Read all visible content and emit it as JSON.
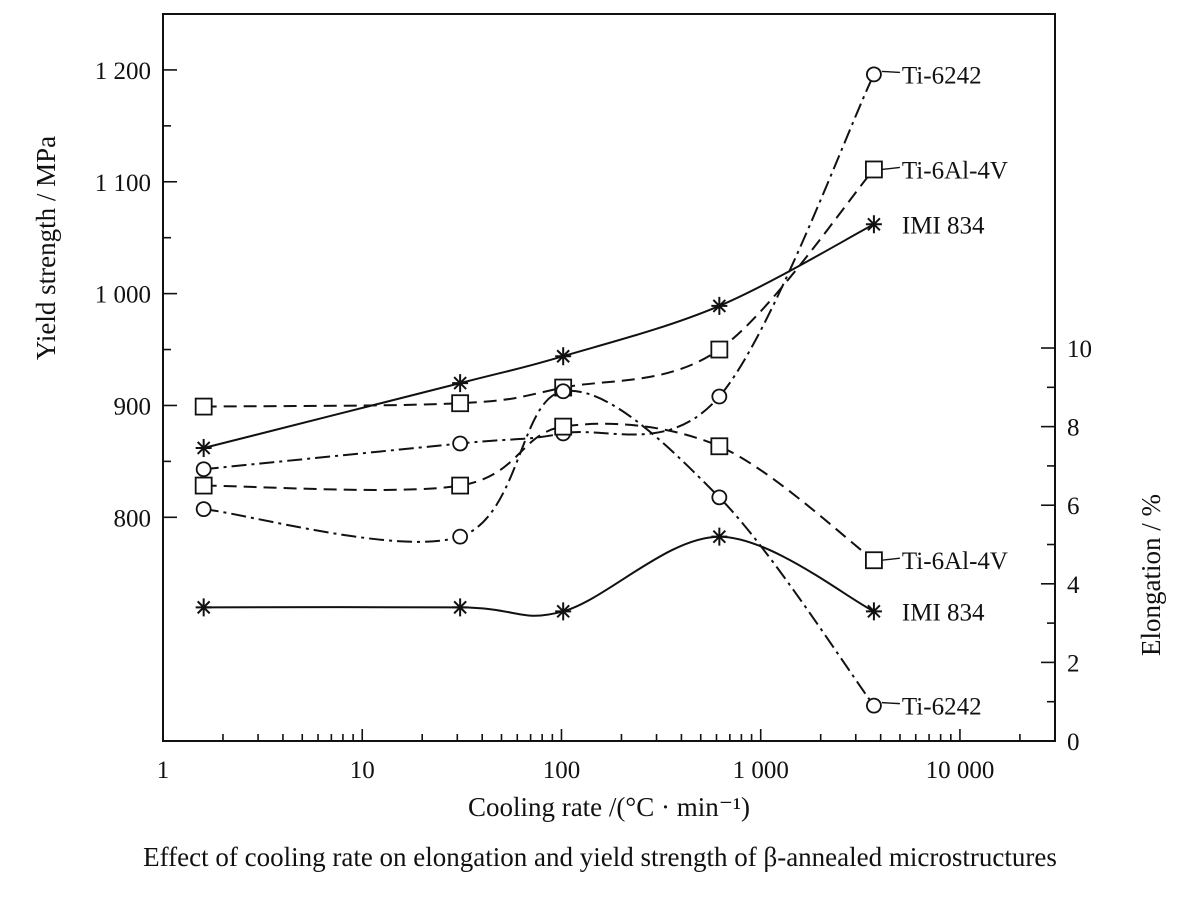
{
  "caption": "Effect of cooling rate on elongation and yield strength of β-annealed microstructures",
  "chart_data": {
    "type": "line",
    "title": "",
    "xlabel": "Cooling rate /(°C · min⁻¹)",
    "ylabel": "Yield strength / MPa",
    "y2label": "Elongation / %",
    "xscale": "log",
    "xlim": [
      1,
      30000
    ],
    "ylim": [
      600,
      1250
    ],
    "y2lim": [
      0,
      18.5
    ],
    "x_ticks": [
      1,
      10,
      100,
      1000,
      10000
    ],
    "x_tick_labels": [
      "1",
      "10",
      "100",
      "1 000",
      "10 000"
    ],
    "y_ticks": [
      800,
      900,
      1000,
      1100,
      1200
    ],
    "y_tick_labels": [
      "800",
      "900",
      "1 000",
      "1 100",
      "1 200"
    ],
    "y2_ticks": [
      0,
      2,
      4,
      6,
      8,
      10
    ],
    "y2_tick_labels": [
      "0",
      "2",
      "4",
      "6",
      "8",
      "10"
    ],
    "grid": false,
    "series": [
      {
        "name": "Ti-6242",
        "axis": "yield",
        "marker": "circle",
        "dash": "dashdot",
        "x": [
          1.6,
          31,
          102,
          620,
          3700
        ],
        "y": [
          843,
          866,
          875,
          908,
          1196
        ]
      },
      {
        "name": "Ti-6Al-4V",
        "axis": "yield",
        "marker": "square",
        "dash": "dashed",
        "x": [
          1.6,
          31,
          102,
          620,
          3700
        ],
        "y": [
          899,
          902,
          916,
          950,
          1111
        ]
      },
      {
        "name": "IMI 834",
        "axis": "yield",
        "marker": "asterisk",
        "dash": "solid",
        "x": [
          1.6,
          31,
          102,
          620,
          3700
        ],
        "y": [
          862,
          920,
          944,
          989,
          1062
        ]
      },
      {
        "name": "Ti-6Al-4V",
        "axis": "elongation",
        "marker": "square",
        "dash": "dashed",
        "x": [
          1.6,
          31,
          102,
          620,
          3700
        ],
        "y": [
          6.5,
          6.5,
          8.0,
          7.5,
          4.6
        ]
      },
      {
        "name": "Ti-6242",
        "axis": "elongation",
        "marker": "circle",
        "dash": "dashdot",
        "x": [
          1.6,
          31,
          102,
          620,
          3700
        ],
        "y": [
          5.9,
          5.2,
          8.9,
          6.2,
          0.9
        ]
      },
      {
        "name": "IMI 834",
        "axis": "elongation",
        "marker": "asterisk",
        "dash": "solid",
        "x": [
          1.6,
          31,
          102,
          620,
          3700
        ],
        "y": [
          3.4,
          3.4,
          3.3,
          5.2,
          3.3
        ]
      }
    ]
  }
}
